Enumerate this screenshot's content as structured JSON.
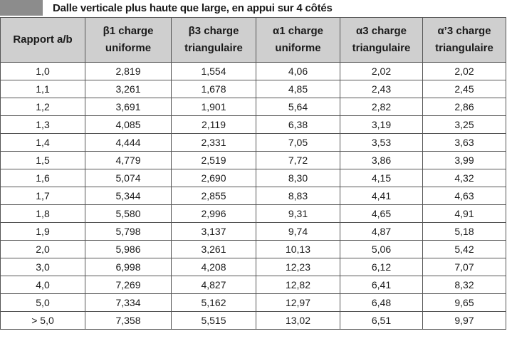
{
  "title": "Dalle verticale plus haute que large, en appui sur 4 côtés",
  "headers": [
    {
      "line1": "Rapport a/b",
      "line2": ""
    },
    {
      "line1": "β1 charge",
      "line2": "uniforme"
    },
    {
      "line1": "β3 charge",
      "line2": "triangulaire"
    },
    {
      "line1": "α1 charge",
      "line2": "uniforme"
    },
    {
      "line1": "α3 charge",
      "line2": "triangulaire"
    },
    {
      "line1": "α’3 charge",
      "line2": "triangulaire"
    }
  ],
  "rows": [
    [
      "1,0",
      "2,819",
      "1,554",
      "4,06",
      "2,02",
      "2,02"
    ],
    [
      "1,1",
      "3,261",
      "1,678",
      "4,85",
      "2,43",
      "2,45"
    ],
    [
      "1,2",
      "3,691",
      "1,901",
      "5,64",
      "2,82",
      "2,86"
    ],
    [
      "1,3",
      "4,085",
      "2,119",
      "6,38",
      "3,19",
      "3,25"
    ],
    [
      "1,4",
      "4,444",
      "2,331",
      "7,05",
      "3,53",
      "3,63"
    ],
    [
      "1,5",
      "4,779",
      "2,519",
      "7,72",
      "3,86",
      "3,99"
    ],
    [
      "1,6",
      "5,074",
      "2,690",
      "8,30",
      "4,15",
      "4,32"
    ],
    [
      "1,7",
      "5,344",
      "2,855",
      "8,83",
      "4,41",
      "4,63"
    ],
    [
      "1,8",
      "5,580",
      "2,996",
      "9,31",
      "4,65",
      "4,91"
    ],
    [
      "1,9",
      "5,798",
      "3,137",
      "9,74",
      "4,87",
      "5,18"
    ],
    [
      "2,0",
      "5,986",
      "3,261",
      "10,13",
      "5,06",
      "5,42"
    ],
    [
      "3,0",
      "6,998",
      "4,208",
      "12,23",
      "6,12",
      "7,07"
    ],
    [
      "4,0",
      "7,269",
      "4,827",
      "12,82",
      "6,41",
      "8,32"
    ],
    [
      "5,0",
      "7,334",
      "5,162",
      "12,97",
      "6,48",
      "9,65"
    ],
    [
      "> 5,0",
      "7,358",
      "5,515",
      "13,02",
      "6,51",
      "9,97"
    ]
  ],
  "colors": {
    "header_background": "#cfcfcf",
    "title_tab": "#8c8c8c",
    "border": "#555555"
  }
}
